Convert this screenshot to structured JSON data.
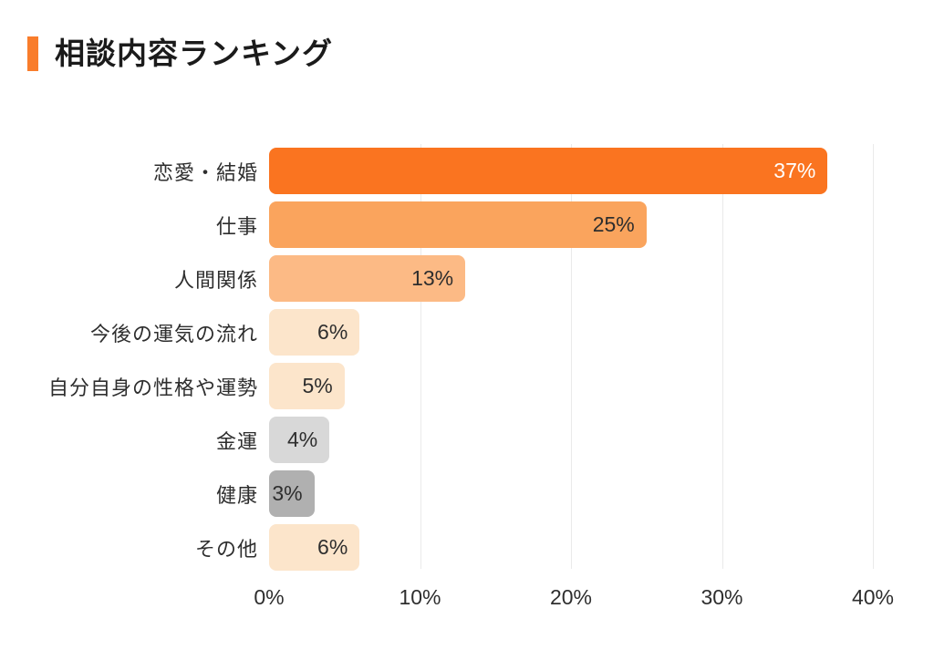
{
  "header": {
    "title": "相談内容ランキング",
    "accent_color": "#F97D2B"
  },
  "chart_data": {
    "type": "bar",
    "orientation": "horizontal",
    "title": "相談内容ランキング",
    "categories": [
      "恋愛・結婚",
      "仕事",
      "人間関係",
      "今後の運気の流れ",
      "自分自身の性格や運勢",
      "金運",
      "健康",
      "その他"
    ],
    "values": [
      37,
      25,
      13,
      6,
      5,
      4,
      3,
      6
    ],
    "display_values": [
      "37%",
      "25%",
      "13%",
      "6%",
      "5%",
      "4%",
      "3%",
      "6%"
    ],
    "value_suffix": "%",
    "xlabel": "",
    "ylabel": "",
    "xlim": [
      0,
      40
    ],
    "x_tick_labels": [
      "0%",
      "10%",
      "20%",
      "30%",
      "40%"
    ],
    "x_tick_positions_pct": [
      0,
      25,
      50,
      75,
      100
    ],
    "grid": "vertical-lines-behind-bars",
    "gridline_color": "#EAEAEA",
    "legend": "none",
    "bar_colors": [
      "#FA7420",
      "#FAA45D",
      "#FCBA85",
      "#FCE5CB",
      "#FCE5CB",
      "#D8D8D8",
      "#B0B0B0",
      "#FCE5CB"
    ],
    "value_label_colors": [
      "#FFFFFF",
      "#2E2E2E",
      "#2E2E2E",
      "#2E2E2E",
      "#2E2E2E",
      "#2E2E2E",
      "#2E2E2E",
      "#2E2E2E"
    ]
  }
}
